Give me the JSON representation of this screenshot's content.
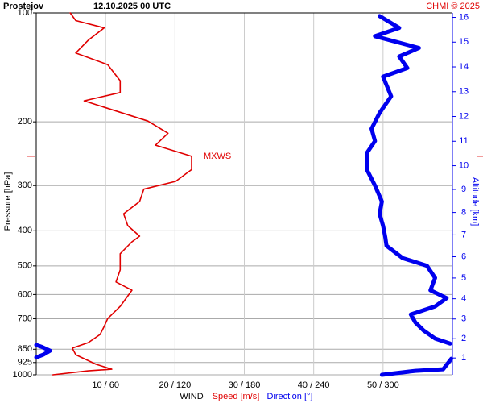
{
  "chart_data": {
    "type": "profile",
    "title": "Prostejov",
    "subtitle": "12.10.2025 00 UTC",
    "credit": "CHMI © 2025",
    "ylabel": "Pressure [hPa]",
    "y2label": "Altitude [km]",
    "xlabel": "WIND",
    "xlabel_speed": "Speed [m/s]",
    "xlabel_direction": "Direction [°]",
    "ylim": [
      100,
      1000
    ],
    "log_y": true,
    "yticks": [
      100,
      200,
      300,
      400,
      500,
      600,
      700,
      850,
      925,
      1000
    ],
    "xlim": [
      0,
      60
    ],
    "x2lim": [
      0,
      360
    ],
    "xticks": [
      {
        "value": 10,
        "label": "10 / 60"
      },
      {
        "value": 20,
        "label": "20 / 120"
      },
      {
        "value": 30,
        "label": "30 / 180"
      },
      {
        "value": 40,
        "label": "40 / 240"
      },
      {
        "value": 50,
        "label": "50 / 300"
      }
    ],
    "y2ticks": [
      1,
      2,
      3,
      4,
      5,
      6,
      7,
      8,
      9,
      10,
      11,
      12,
      13,
      14,
      15,
      16
    ],
    "grid": true,
    "annotation": {
      "text": "MXWS",
      "pressure": 249
    },
    "series": [
      {
        "name": "Speed [m/s]",
        "color": "#e00000",
        "axis": "x",
        "pressure": [
          1000,
          975,
          965,
          935,
          880,
          844,
          815,
          774,
          735,
          699,
          647,
          584,
          554,
          513,
          463,
          429,
          414,
          387,
          359,
          332,
          307,
          292,
          271,
          249,
          232,
          215,
          199,
          175,
          166,
          154,
          139,
          129,
          119,
          110,
          105,
          100
        ],
        "values": [
          2.4,
          7.5,
          10.9,
          8.6,
          5.7,
          5.2,
          7.5,
          9.2,
          9.8,
          10.3,
          12.1,
          13.8,
          11.5,
          12.1,
          12.1,
          13.8,
          14.9,
          13.2,
          12.6,
          14.9,
          15.5,
          20.1,
          22.4,
          22.4,
          17.2,
          19,
          16.1,
          6.9,
          12.1,
          12.1,
          10.3,
          5.7,
          7.5,
          9.8,
          5.7,
          4.9
        ]
      },
      {
        "name": "Direction [°]",
        "color": "#0000ee",
        "axis": "x2",
        "pressure": [
          1000,
          975,
          965,
          903,
          null,
          895,
          880,
          858,
          838,
          827,
          null,
          820,
          794,
          754,
          717,
          681,
          647,
          614,
          584,
          540,
          500,
          476,
          440,
          418,
          387,
          359,
          332,
          300,
          271,
          244,
          226,
          209,
          189,
          170,
          150,
          142,
          132,
          125,
          116,
          110,
          102
        ],
        "values": [
          299,
          328,
          352,
          359,
          null,
          0,
          6,
          12,
          5,
          0,
          null,
          358,
          345,
          335,
          328,
          324,
          345,
          355,
          341,
          345,
          338,
          317,
          303,
          302,
          300,
          297,
          299,
          293,
          286,
          286,
          293,
          290,
          297,
          307,
          300,
          321,
          314,
          331,
          293,
          314,
          297
        ]
      }
    ]
  }
}
